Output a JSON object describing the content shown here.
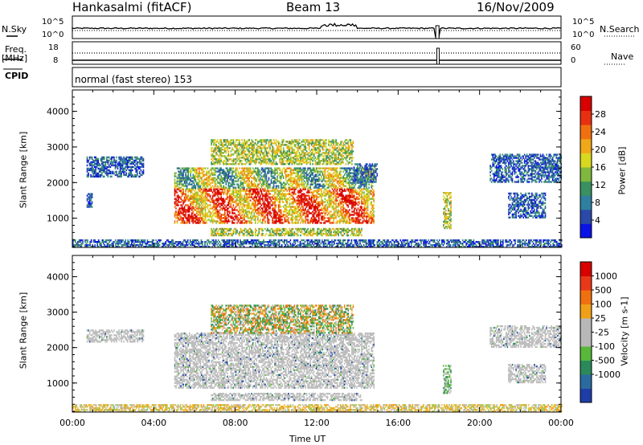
{
  "header": {
    "station": "Hankasalmi (fitACF)",
    "beam": "Beam 13",
    "date": "16/Nov/2009"
  },
  "panels": {
    "nsky_label": "N.Sky",
    "nsky_ticks": [
      "10^5",
      "10^0"
    ],
    "nsearch_label": "N.Search",
    "nsearch_ticks": [
      "10^5",
      "10^0"
    ],
    "freq_label_1": "Freq.",
    "freq_label_2": "[MHz]",
    "freq_ticks": [
      "18",
      "8"
    ],
    "nave_label": "Nave",
    "nave_ticks": [
      "60",
      "0"
    ],
    "cpid_label": "CPID",
    "cpid_text": "normal (fast stereo) 153"
  },
  "chart_data": [
    {
      "type": "heatmap",
      "name": "power",
      "ylabel": "Slant Range [km]",
      "yticks": [
        1000,
        2000,
        3000,
        4000
      ],
      "ylim": [
        180,
        4600
      ],
      "xlabel": "Time UT",
      "xticks": [
        "00:00",
        "04:00",
        "08:00",
        "12:00",
        "16:00",
        "20:00",
        "00:00"
      ],
      "xlim_hours": [
        0,
        24
      ],
      "colorbar": {
        "label": "Power [dB]",
        "ticks": [
          "4",
          "8",
          "12",
          "16",
          "20",
          "24",
          "28"
        ],
        "colors": [
          "#0a14e6",
          "#2a49a8",
          "#2f7fa0",
          "#3a9060",
          "#7fb83e",
          "#d8d81e",
          "#f0a818",
          "#f07010",
          "#e83010",
          "#d80000"
        ]
      },
      "regions": [
        {
          "t0": 0.7,
          "t1": 3.5,
          "r0": 2150,
          "r1": 2700,
          "level": "low"
        },
        {
          "t0": 0.7,
          "t1": 1.0,
          "r0": 1300,
          "r1": 1700,
          "level": "low"
        },
        {
          "t0": 5.0,
          "t1": 14.8,
          "r0": 850,
          "r1": 2400,
          "level": "high"
        },
        {
          "t0": 6.8,
          "t1": 13.8,
          "r0": 2500,
          "r1": 3200,
          "level": "mid"
        },
        {
          "t0": 6.8,
          "t1": 14.2,
          "r0": 500,
          "r1": 700,
          "level": "mid"
        },
        {
          "t0": 13.8,
          "t1": 15.0,
          "r0": 2000,
          "r1": 2500,
          "level": "low"
        },
        {
          "t0": 18.2,
          "t1": 18.6,
          "r0": 700,
          "r1": 1700,
          "level": "mid"
        },
        {
          "t0": 21.4,
          "t1": 23.2,
          "r0": 1000,
          "r1": 1700,
          "level": "low"
        },
        {
          "t0": 20.5,
          "t1": 24.0,
          "r0": 2000,
          "r1": 2800,
          "level": "low"
        },
        {
          "t0": 0.0,
          "t1": 24.0,
          "r0": 180,
          "r1": 380,
          "level": "low"
        }
      ]
    },
    {
      "type": "heatmap",
      "name": "velocity",
      "ylabel": "Slant Range [km]",
      "yticks": [
        1000,
        2000,
        3000,
        4000
      ],
      "ylim": [
        180,
        4600
      ],
      "xlabel": "Time UT",
      "xticks": [
        "00:00",
        "04:00",
        "08:00",
        "12:00",
        "16:00",
        "20:00",
        "00:00"
      ],
      "xlim_hours": [
        0,
        24
      ],
      "colorbar": {
        "label": "Velocity [m s-1]",
        "ticks": [
          "1000",
          "500",
          "100",
          "25",
          "-25",
          "-100",
          "-500",
          "-1000"
        ],
        "colors": [
          "#1f3da8",
          "#2a6aa0",
          "#2a8a5a",
          "#58b83a",
          "#b8b8b8",
          "#b8b8b8",
          "#f0a018",
          "#f07010",
          "#e83818",
          "#d80000"
        ]
      },
      "regions": [
        {
          "t0": 0.7,
          "t1": 3.5,
          "r0": 2150,
          "r1": 2500,
          "level": "gray"
        },
        {
          "t0": 5.0,
          "t1": 14.8,
          "r0": 850,
          "r1": 2400,
          "level": "gray"
        },
        {
          "t0": 6.8,
          "t1": 13.8,
          "r0": 2400,
          "r1": 3200,
          "level": "mixed"
        },
        {
          "t0": 6.8,
          "t1": 14.2,
          "r0": 500,
          "r1": 700,
          "level": "gray"
        },
        {
          "t0": 18.2,
          "t1": 18.6,
          "r0": 700,
          "r1": 1500,
          "level": "green"
        },
        {
          "t0": 21.4,
          "t1": 23.2,
          "r0": 1000,
          "r1": 1500,
          "level": "gray"
        },
        {
          "t0": 20.5,
          "t1": 24.0,
          "r0": 2000,
          "r1": 2600,
          "level": "gray"
        },
        {
          "t0": 0.0,
          "t1": 24.0,
          "r0": 180,
          "r1": 380,
          "level": "ground"
        }
      ]
    }
  ]
}
